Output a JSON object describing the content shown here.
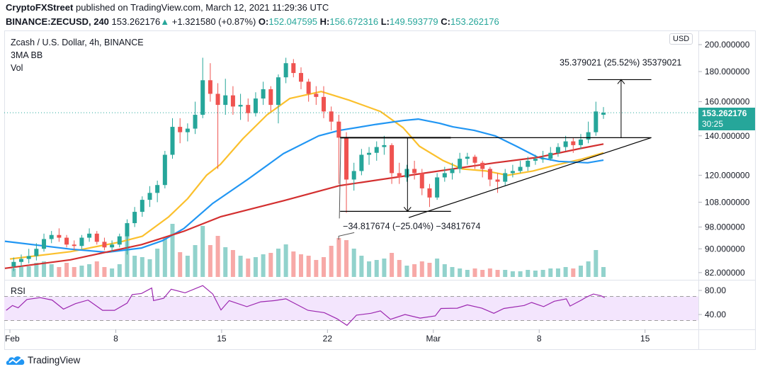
{
  "header": {
    "author": "CryptoFXStreet",
    "published": "published on TradingView.com, March 12, 2021 11:29:36 UTC",
    "symbol": "BINANCE:ZECUSD, 240",
    "last": "153.262176",
    "change": "+1.321580 (+0.87%)",
    "o_label": "O:",
    "o": "152.047595",
    "h_label": "H:",
    "h": "156.672316",
    "l_label": "L:",
    "l": "149.593779",
    "c_label": "C:",
    "c": "153.262176",
    "up_icon": "triangle-up-icon"
  },
  "legend": {
    "title": "Zcash / U.S. Dollar, 4h, BINANCE",
    "indicator": "3MA BB",
    "volume": "Vol",
    "rsi": "RSI"
  },
  "price_axis": {
    "currency": "USD",
    "last_price": "153.262176",
    "countdown": "30:25"
  },
  "logo": {
    "text": "TradingView"
  },
  "colors": {
    "up": "#26a69a",
    "down": "#ef5350",
    "ma_fast": "#fbc02d",
    "ma_mid": "#2196f3",
    "ma_slow": "#d32f2f",
    "rsi": "#9c27b0",
    "rsi_band": "#f3e5fd",
    "brand": "#2196f3"
  },
  "chart_data": {
    "type": "candlestick",
    "yscale": "log",
    "ylim": [
      80,
      205
    ],
    "xlim": [
      "2021-01-31T18:00",
      "2021-03-19T12:00"
    ],
    "grid": false,
    "price_ticks": [
      "200.000000",
      "180.000000",
      "160.000000",
      "140.000000",
      "120.000000",
      "108.000000",
      "98.000000",
      "90.000000",
      "82.000000"
    ],
    "date_ticks": [
      {
        "label": "Feb",
        "date": "2021-02-01T00:00"
      },
      {
        "label": "8",
        "date": "2021-02-08T00:00"
      },
      {
        "label": "15",
        "date": "2021-02-15T00:00"
      },
      {
        "label": "22",
        "date": "2021-02-22T00:00"
      },
      {
        "label": "Mar",
        "date": "2021-03-01T00:00"
      },
      {
        "label": "8",
        "date": "2021-03-08T00:00"
      },
      {
        "label": "15",
        "date": "2021-03-15T00:00"
      }
    ],
    "candles_columns": [
      "time",
      "open",
      "high",
      "low",
      "close",
      "volume"
    ],
    "candles": [
      [
        "2021-02-01T00:00",
        84,
        87,
        82.5,
        85.5,
        12
      ],
      [
        "2021-02-01T12:00",
        85.5,
        88,
        84,
        86.5,
        14
      ],
      [
        "2021-02-02T00:00",
        86.5,
        90,
        85,
        87.5,
        15
      ],
      [
        "2021-02-02T12:00",
        87.5,
        92,
        86,
        90,
        20
      ],
      [
        "2021-02-03T00:00",
        90,
        95.5,
        89,
        93.5,
        22
      ],
      [
        "2021-02-03T12:00",
        93.5,
        96.5,
        92,
        95,
        18
      ],
      [
        "2021-02-04T00:00",
        95,
        97.5,
        92.5,
        94,
        14
      ],
      [
        "2021-02-04T12:00",
        94,
        95,
        90.5,
        91.5,
        20
      ],
      [
        "2021-02-05T00:00",
        91.5,
        93,
        89.5,
        91,
        14
      ],
      [
        "2021-02-05T12:00",
        91,
        95,
        90,
        94,
        16
      ],
      [
        "2021-02-06T00:00",
        94,
        97.5,
        92.5,
        95.5,
        18
      ],
      [
        "2021-02-06T12:00",
        95.5,
        96.5,
        91.5,
        92.5,
        22
      ],
      [
        "2021-02-07T00:00",
        92.5,
        94,
        89.5,
        90.5,
        14
      ],
      [
        "2021-02-07T12:00",
        90.5,
        93,
        89,
        91.5,
        12
      ],
      [
        "2021-02-08T00:00",
        91.5,
        95.5,
        90.5,
        94.5,
        18
      ],
      [
        "2021-02-08T12:00",
        94.5,
        101,
        88,
        99.5,
        62
      ],
      [
        "2021-02-09T00:00",
        99.5,
        106,
        98,
        104,
        30
      ],
      [
        "2021-02-09T12:00",
        104,
        110.5,
        102,
        109,
        28
      ],
      [
        "2021-02-10T00:00",
        109,
        115,
        106,
        112,
        25
      ],
      [
        "2021-02-10T12:00",
        112,
        117.5,
        108,
        115.5,
        40
      ],
      [
        "2021-02-11T00:00",
        115.5,
        132,
        114,
        130,
        55
      ],
      [
        "2021-02-11T12:00",
        130,
        150,
        128,
        145,
        75
      ],
      [
        "2021-02-12T00:00",
        145,
        150,
        136,
        142,
        35
      ],
      [
        "2021-02-12T12:00",
        142,
        147,
        137,
        144,
        30
      ],
      [
        "2021-02-13T00:00",
        144,
        160,
        141,
        152,
        45
      ],
      [
        "2021-02-13T12:00",
        152,
        190,
        150,
        174,
        72
      ],
      [
        "2021-02-14T00:00",
        174,
        186,
        160,
        165,
        45
      ],
      [
        "2021-02-14T12:00",
        165,
        172,
        123,
        158,
        58
      ],
      [
        "2021-02-15T00:00",
        158,
        175,
        152,
        164,
        42
      ],
      [
        "2021-02-15T12:00",
        164,
        170,
        152,
        157,
        38
      ],
      [
        "2021-02-16T00:00",
        157,
        165,
        149,
        158,
        30
      ],
      [
        "2021-02-16T12:00",
        158,
        162,
        148,
        153,
        26
      ],
      [
        "2021-02-17T00:00",
        153,
        166,
        151,
        162,
        28
      ],
      [
        "2021-02-17T12:00",
        162,
        173,
        158,
        168,
        32
      ],
      [
        "2021-02-18T00:00",
        168,
        170,
        154,
        158,
        34
      ],
      [
        "2021-02-18T12:00",
        158,
        178,
        147,
        176,
        40
      ],
      [
        "2021-02-19T00:00",
        176,
        190,
        172,
        186,
        46
      ],
      [
        "2021-02-19T12:00",
        186,
        189,
        176,
        179,
        36
      ],
      [
        "2021-02-20T00:00",
        179,
        183,
        168,
        173,
        32
      ],
      [
        "2021-02-20T12:00",
        173,
        175,
        160,
        165,
        30
      ],
      [
        "2021-02-21T00:00",
        165,
        170,
        158,
        163,
        24
      ],
      [
        "2021-02-21T12:00",
        163,
        170,
        150,
        154,
        28
      ],
      [
        "2021-02-22T00:00",
        154,
        157,
        143,
        148,
        44
      ],
      [
        "2021-02-22T12:00",
        148,
        152,
        116,
        139,
        55
      ],
      [
        "2021-02-23T00:00",
        139,
        142,
        103.6,
        118,
        52
      ],
      [
        "2021-02-23T12:00",
        118,
        126,
        113,
        122,
        40
      ],
      [
        "2021-02-24T00:00",
        122,
        133,
        120,
        130,
        30
      ],
      [
        "2021-02-24T12:00",
        130,
        134,
        125,
        131,
        22
      ],
      [
        "2021-02-25T00:00",
        131,
        137,
        127,
        134,
        24
      ],
      [
        "2021-02-25T12:00",
        134,
        140,
        130,
        135,
        26
      ],
      [
        "2021-02-26T00:00",
        135,
        136,
        116,
        121,
        34
      ],
      [
        "2021-02-26T12:00",
        121,
        126,
        116,
        119,
        24
      ],
      [
        "2021-02-27T00:00",
        119,
        125,
        117,
        123,
        16
      ],
      [
        "2021-02-27T12:00",
        123,
        127,
        118,
        121,
        18
      ],
      [
        "2021-02-28T00:00",
        121,
        123,
        111,
        114,
        22
      ],
      [
        "2021-02-28T12:00",
        114,
        116,
        106,
        110,
        20
      ],
      [
        "2021-03-01T00:00",
        110,
        121,
        109,
        119,
        26
      ],
      [
        "2021-03-01T12:00",
        119,
        124,
        117,
        121,
        18
      ],
      [
        "2021-03-02T00:00",
        121,
        126,
        118,
        123,
        14
      ],
      [
        "2021-03-02T12:00",
        123,
        131,
        121,
        128,
        12
      ],
      [
        "2021-03-03T00:00",
        128,
        131,
        125,
        129,
        10
      ],
      [
        "2021-03-03T12:00",
        129,
        130,
        123,
        126,
        12
      ],
      [
        "2021-03-04T00:00",
        126,
        127,
        119,
        123,
        10
      ],
      [
        "2021-03-04T12:00",
        123,
        124,
        115,
        118,
        12
      ],
      [
        "2021-03-05T00:00",
        118,
        121,
        112,
        117,
        10
      ],
      [
        "2021-03-05T12:00",
        117,
        123,
        115,
        121,
        10
      ],
      [
        "2021-03-06T00:00",
        121,
        125,
        119,
        122,
        8
      ],
      [
        "2021-03-06T12:00",
        122,
        127,
        121,
        124,
        8
      ],
      [
        "2021-03-07T00:00",
        124,
        129,
        122,
        127,
        10
      ],
      [
        "2021-03-07T12:00",
        127,
        130,
        125,
        128,
        9
      ],
      [
        "2021-03-08T00:00",
        128,
        132,
        126,
        128,
        10
      ],
      [
        "2021-03-08T12:00",
        128,
        134,
        127,
        131,
        12
      ],
      [
        "2021-03-09T00:00",
        131,
        136,
        129,
        134,
        12
      ],
      [
        "2021-03-09T12:00",
        134,
        140,
        132,
        137,
        14
      ],
      [
        "2021-03-10T00:00",
        137,
        139,
        131,
        135,
        12
      ],
      [
        "2021-03-10T12:00",
        135,
        141,
        133,
        138,
        16
      ],
      [
        "2021-03-11T00:00",
        138,
        148,
        136,
        142,
        22
      ],
      [
        "2021-03-11T12:00",
        142,
        160,
        140,
        154,
        38
      ],
      [
        "2021-03-12T00:00",
        152.047595,
        156.672316,
        149.593779,
        153.262176,
        14
      ]
    ],
    "moving_averages": [
      {
        "color": "#fbc02d",
        "points": [
          [
            "2021-02-01T00:00",
            86.5
          ],
          [
            "2021-02-05T00:00",
            89
          ],
          [
            "2021-02-08T06:00",
            92.4
          ],
          [
            "2021-02-09T18:00",
            94.5
          ],
          [
            "2021-02-11T12:00",
            102
          ],
          [
            "2021-02-12T18:00",
            109.5
          ],
          [
            "2021-02-14T00:00",
            120
          ],
          [
            "2021-02-14T22:00",
            125.2
          ],
          [
            "2021-02-16T10:00",
            138.5
          ],
          [
            "2021-02-18T00:00",
            152
          ],
          [
            "2021-02-19T12:00",
            162
          ],
          [
            "2021-02-21T14:00",
            166.5
          ],
          [
            "2021-02-23T10:00",
            161
          ],
          [
            "2021-02-25T12:00",
            154
          ],
          [
            "2021-02-27T00:00",
            144.5
          ],
          [
            "2021-02-28T02:00",
            134.4
          ],
          [
            "2021-03-01T16:00",
            127
          ],
          [
            "2021-03-02T22:00",
            123
          ],
          [
            "2021-03-04T12:00",
            122
          ],
          [
            "2021-03-05T22:00",
            120
          ],
          [
            "2021-03-07T14:00",
            122
          ],
          [
            "2021-03-09T04:00",
            125
          ],
          [
            "2021-03-10T18:00",
            127.7
          ],
          [
            "2021-03-12T06:00",
            131
          ]
        ]
      },
      {
        "color": "#2196f3",
        "points": [
          [
            "2021-01-31T16:00",
            92.7
          ],
          [
            "2021-02-05T00:00",
            89.9
          ],
          [
            "2021-02-07T10:00",
            88.8
          ],
          [
            "2021-02-09T17:00",
            90.3
          ],
          [
            "2021-02-11T02:00",
            92.9
          ],
          [
            "2021-02-12T12:00",
            97.4
          ],
          [
            "2021-02-14T10:00",
            107.5
          ],
          [
            "2021-02-16T17:00",
            118
          ],
          [
            "2021-02-19T02:00",
            130.6
          ],
          [
            "2021-02-21T10:00",
            140
          ],
          [
            "2021-02-22T19:00",
            143
          ],
          [
            "2021-02-25T05:00",
            146.4
          ],
          [
            "2021-02-27T00:00",
            148.6
          ],
          [
            "2021-02-28T00:00",
            149.5
          ],
          [
            "2021-03-01T10:00",
            147
          ],
          [
            "2021-03-02T07:00",
            145
          ],
          [
            "2021-03-03T17:00",
            143
          ],
          [
            "2021-03-05T02:00",
            140
          ],
          [
            "2021-03-06T12:00",
            134.4
          ],
          [
            "2021-03-07T22:00",
            128.7
          ],
          [
            "2021-03-09T07:00",
            126.7
          ],
          [
            "2021-03-11T05:00",
            126
          ],
          [
            "2021-03-12T06:00",
            127.3
          ]
        ]
      },
      {
        "color": "#d32f2f",
        "points": [
          [
            "2021-01-31T16:00",
            83.4
          ],
          [
            "2021-02-05T00:00",
            86.2
          ],
          [
            "2021-02-09T17:00",
            91.5
          ],
          [
            "2021-02-12T12:00",
            96.4
          ],
          [
            "2021-02-14T22:00",
            102
          ],
          [
            "2021-02-19T02:00",
            108.6
          ],
          [
            "2021-02-22T19:00",
            115.2
          ],
          [
            "2021-02-26T14:00",
            119.1
          ],
          [
            "2021-03-02T07:00",
            123
          ],
          [
            "2021-03-05T02:00",
            126
          ],
          [
            "2021-03-07T22:00",
            128.7
          ],
          [
            "2021-03-10T18:00",
            133.3
          ],
          [
            "2021-03-12T06:00",
            135.6
          ]
        ]
      }
    ],
    "rsi": {
      "ylim": [
        18,
        98
      ],
      "ticks": [
        "80.00",
        "40.00"
      ],
      "band": [
        30,
        70
      ],
      "points": [
        [
          "2021-01-31T18:00",
          47
        ],
        [
          "2021-02-01T04:00",
          55
        ],
        [
          "2021-02-01T13:00",
          51
        ],
        [
          "2021-02-02T03:00",
          65
        ],
        [
          "2021-02-03T00:00",
          68
        ],
        [
          "2021-02-03T19:00",
          64
        ],
        [
          "2021-02-04T13:00",
          49
        ],
        [
          "2021-02-05T08:00",
          58
        ],
        [
          "2021-02-06T04:00",
          64
        ],
        [
          "2021-02-07T03:00",
          47
        ],
        [
          "2021-02-07T22:00",
          47
        ],
        [
          "2021-02-08T18:00",
          59
        ],
        [
          "2021-02-09T02:00",
          73
        ],
        [
          "2021-02-09T17:00",
          75
        ],
        [
          "2021-02-10T09:00",
          84
        ],
        [
          "2021-02-10T12:00",
          63
        ],
        [
          "2021-02-11T04:00",
          67
        ],
        [
          "2021-02-11T16:00",
          82
        ],
        [
          "2021-02-12T14:00",
          76
        ],
        [
          "2021-02-13T18:00",
          88
        ],
        [
          "2021-02-14T10:00",
          74
        ],
        [
          "2021-02-14T23:00",
          47.5
        ],
        [
          "2021-02-15T12:00",
          63
        ],
        [
          "2021-02-16T16:00",
          53
        ],
        [
          "2021-02-17T14:00",
          61
        ],
        [
          "2021-02-18T12:00",
          63
        ],
        [
          "2021-02-19T06:00",
          66
        ],
        [
          "2021-02-20T17:00",
          47
        ],
        [
          "2021-02-21T19:00",
          43
        ],
        [
          "2021-02-22T15:00",
          33
        ],
        [
          "2021-02-23T07:00",
          22
        ],
        [
          "2021-02-23T22:00",
          39
        ],
        [
          "2021-02-24T21:00",
          42
        ],
        [
          "2021-02-25T12:00",
          46
        ],
        [
          "2021-02-26T04:00",
          32
        ],
        [
          "2021-02-27T03:00",
          40
        ],
        [
          "2021-02-28T03:00",
          34
        ],
        [
          "2021-03-01T03:00",
          37.6
        ],
        [
          "2021-03-01T12:00",
          50
        ],
        [
          "2021-03-02T14:00",
          50.5
        ],
        [
          "2021-03-03T06:00",
          56
        ],
        [
          "2021-03-04T05:00",
          50.5
        ],
        [
          "2021-03-05T00:00",
          42
        ],
        [
          "2021-03-05T16:00",
          50
        ],
        [
          "2021-03-07T00:00",
          55
        ],
        [
          "2021-03-07T12:00",
          60
        ],
        [
          "2021-03-08T07:00",
          53
        ],
        [
          "2021-03-09T00:00",
          62
        ],
        [
          "2021-03-09T19:00",
          66
        ],
        [
          "2021-03-10T01:00",
          54
        ],
        [
          "2021-03-10T19:00",
          64
        ],
        [
          "2021-03-11T03:00",
          69
        ],
        [
          "2021-03-11T14:00",
          74
        ],
        [
          "2021-03-12T02:00",
          71
        ],
        [
          "2021-03-12T08:00",
          68
        ]
      ]
    },
    "annotations": {
      "neckline": {
        "price": 139.0,
        "from": "2021-02-22T20:00",
        "to": "2021-03-15T10:00"
      },
      "pattern_low": {
        "price": 104.2,
        "from": "2021-02-22T20:00",
        "to": "2021-03-02T04:00"
      },
      "measure_down": {
        "at": "2021-02-27T07:00",
        "from_price": 139.0,
        "to_price": 104.2,
        "label": "−34.817674 (−25.04%) −34817674"
      },
      "target": {
        "price": 174.4,
        "from": "2021-03-11T05:00",
        "to": "2021-03-15T10:00"
      },
      "measure_up": {
        "at": "2021-03-13T10:00",
        "from_price": 139.0,
        "to_price": 174.4,
        "label": "35.379021 (25.52%) 35379021"
      },
      "trendline": {
        "from": [
          "2021-02-27T09:00",
          101.7
        ],
        "to": [
          "2021-03-15T10:00",
          139.0
        ]
      }
    }
  }
}
